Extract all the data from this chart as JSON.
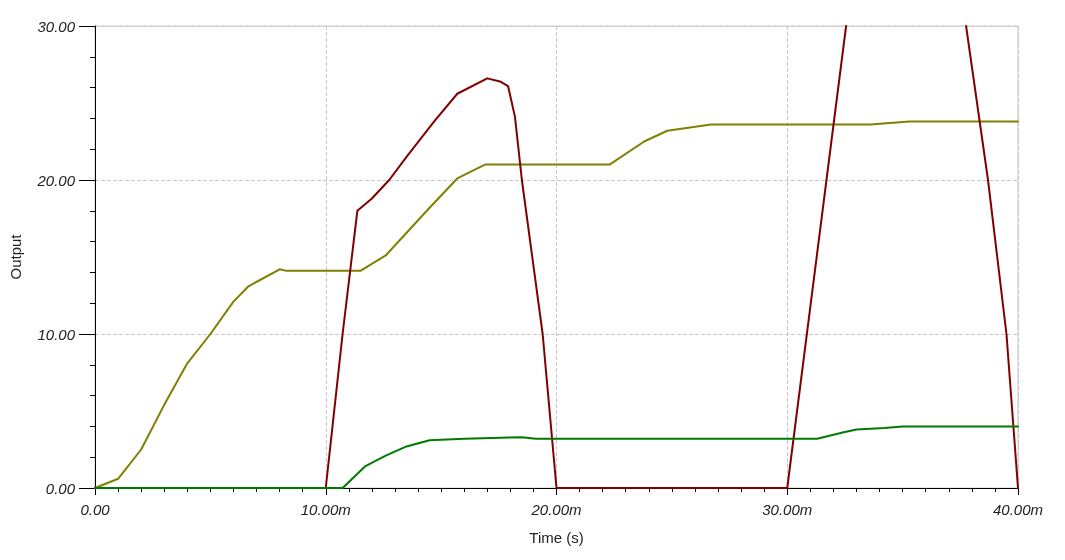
{
  "chart_data": {
    "type": "line",
    "xlabel": "Time (s)",
    "ylabel": "Output",
    "xlim": [
      0,
      40
    ],
    "ylim": [
      0,
      30
    ],
    "xticks": [
      {
        "value": 0,
        "label": "0.00"
      },
      {
        "value": 10,
        "label": "10.00m"
      },
      {
        "value": 20,
        "label": "20.00m"
      },
      {
        "value": 30,
        "label": "30.00m"
      },
      {
        "value": 40,
        "label": "40.00m"
      }
    ],
    "yticks": [
      {
        "value": 0,
        "label": "0.00"
      },
      {
        "value": 10,
        "label": "10.00"
      },
      {
        "value": 20,
        "label": "20.00"
      },
      {
        "value": 30,
        "label": "30.00"
      }
    ],
    "grid": true,
    "marker": "none",
    "line_style": "solid",
    "series": [
      {
        "color": "#808000",
        "x": [
          0,
          1,
          2,
          3,
          4,
          5,
          6,
          6.65,
          8,
          8.3,
          11.5,
          12.6,
          14.5,
          15.7,
          16.9,
          22.3,
          23.8,
          24.8,
          26.7,
          33.6,
          35.3,
          40
        ],
        "values": [
          0,
          0.6,
          2.5,
          5.4,
          8.1,
          10,
          12.1,
          13.1,
          14.2,
          14.1,
          14.1,
          15.1,
          18.2,
          20.1,
          21.0,
          21.0,
          22.5,
          23.2,
          23.6,
          23.6,
          23.8,
          23.8
        ]
      },
      {
        "color": "#800000",
        "x": [
          0,
          10,
          10.73,
          11.37,
          12,
          12.75,
          13.5,
          14.7,
          15.7,
          17,
          17.55,
          17.9,
          18.2,
          18.5,
          19.4,
          20,
          30,
          30.85,
          31.7,
          32.55,
          35,
          37.75,
          38.7,
          39.5,
          40
        ],
        "values": [
          0,
          0,
          10,
          18.0,
          18.8,
          20.0,
          21.5,
          23.8,
          25.6,
          26.6,
          26.4,
          26.1,
          24.1,
          20,
          10,
          0,
          0,
          10,
          20,
          30,
          null,
          30,
          20,
          10,
          0
        ]
      },
      {
        "color": "#007a00",
        "x": [
          0,
          10.73,
          11.7,
          12.6,
          13.5,
          14.5,
          16,
          18.5,
          19.1,
          31.3,
          32.4,
          33,
          34.2,
          35,
          40
        ],
        "values": [
          0,
          0,
          1.4,
          2.1,
          2.7,
          3.1,
          3.2,
          3.3,
          3.2,
          3.2,
          3.6,
          3.8,
          3.9,
          4.0,
          4.0
        ]
      }
    ]
  }
}
